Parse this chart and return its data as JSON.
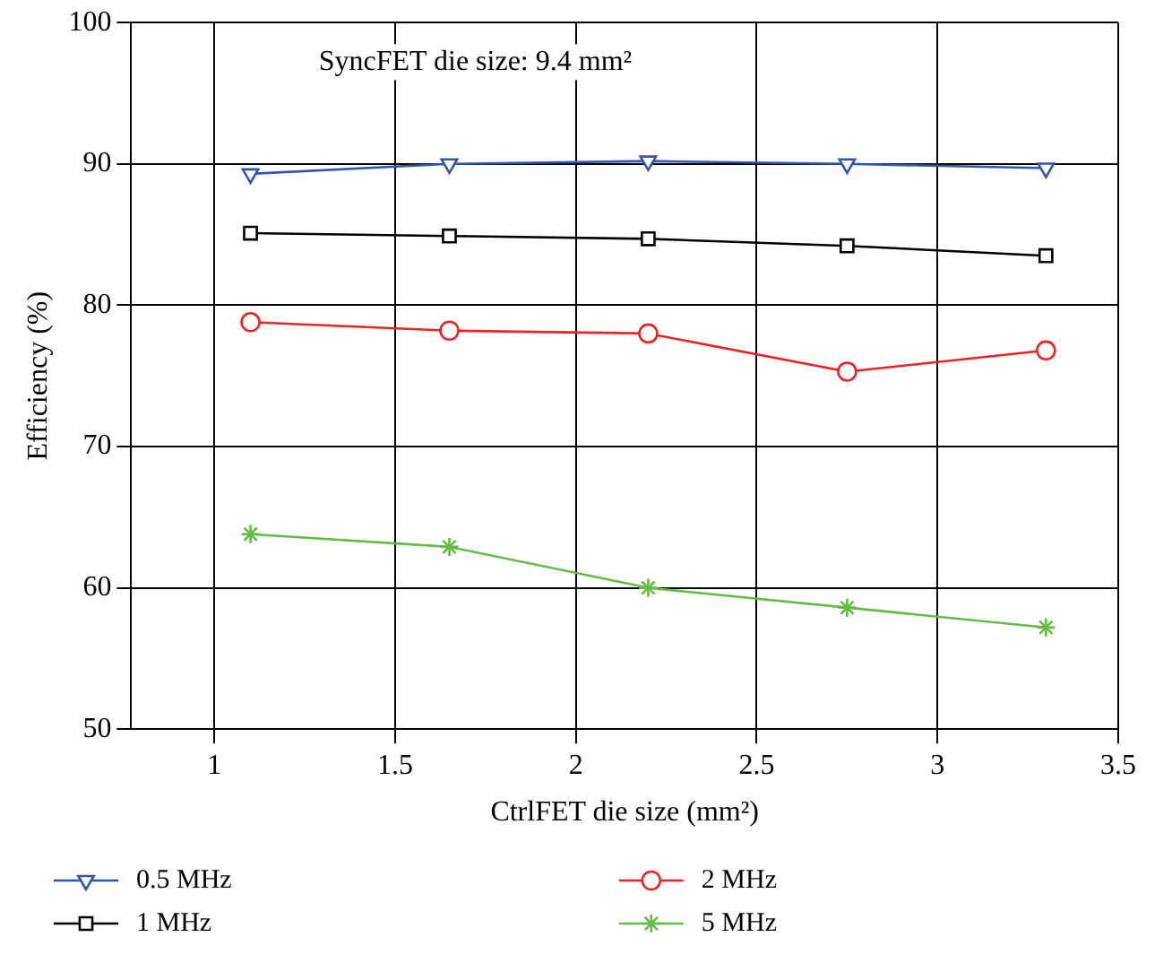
{
  "chart_data": {
    "type": "line",
    "xlabel": "CtrlFET die size (mm²)",
    "ylabel": "Efficiency (%)",
    "annotations": [
      "SyncFET die size: 9.4 mm²"
    ],
    "x": [
      1.1,
      1.65,
      2.2,
      2.75,
      3.3
    ],
    "xlim": [
      0.77,
      3.5
    ],
    "xticks": [
      1,
      1.5,
      2,
      2.5,
      3,
      3.5
    ],
    "ylim": [
      50,
      100
    ],
    "yticks": [
      50,
      60,
      70,
      80,
      90,
      100
    ],
    "grid": true,
    "legend": "bottom",
    "line_style": "solid",
    "series": [
      {
        "name": "0.5 MHz",
        "color": "#3355aa",
        "marker": "triangle",
        "values": [
          89.3,
          90.0,
          90.2,
          90.0,
          89.7
        ]
      },
      {
        "name": "1 MHz",
        "color": "#000000",
        "marker": "square",
        "values": [
          85.1,
          84.9,
          84.7,
          84.2,
          83.5
        ]
      },
      {
        "name": "2 MHz",
        "color": "#ee2222",
        "marker": "circle",
        "values": [
          78.8,
          78.2,
          78.0,
          75.3,
          76.8
        ]
      },
      {
        "name": "5 MHz",
        "color": "#66bb44",
        "marker": "cross",
        "values": [
          63.8,
          62.9,
          60.0,
          58.6,
          57.2
        ]
      }
    ]
  }
}
